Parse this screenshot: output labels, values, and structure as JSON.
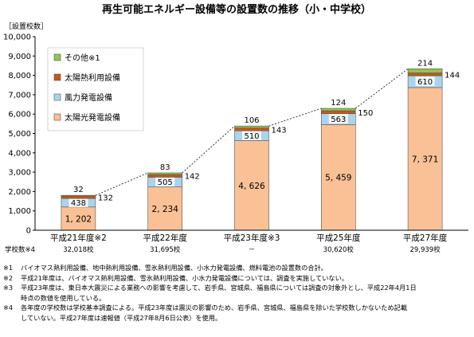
{
  "chart_data": {
    "type": "bar",
    "title": "再生可能エネルギー設備等の設置数の推移（小・中学校）",
    "ylabel": "［設置校数］",
    "ylim": [
      0,
      10000
    ],
    "yticks": [
      "0",
      "1,000",
      "2,000",
      "3,000",
      "4,000",
      "5,000",
      "6,000",
      "7,000",
      "8,000",
      "9,000",
      "10,000"
    ],
    "stacked": true,
    "categories": [
      "平成21年度※2",
      "平成22年度",
      "平成23年度※3",
      "平成25年度",
      "平成27年度"
    ],
    "series": [
      {
        "name": "太陽光発電設備",
        "values": [
          1202,
          2234,
          4626,
          5459,
          7371
        ],
        "labels": [
          "1, 202",
          "2, 234",
          "4, 626",
          "5, 459",
          "7, 371"
        ],
        "color": "#f9c195"
      },
      {
        "name": "風力発電設備",
        "values": [
          438,
          505,
          510,
          563,
          610
        ],
        "labels": [
          "438",
          "505",
          "510",
          "563",
          "610"
        ],
        "color": "#a9d4f0"
      },
      {
        "name": "太陽熱利用設備",
        "values": [
          132,
          142,
          143,
          150,
          144
        ],
        "labels": [
          "132",
          "142",
          "143",
          "150",
          "144"
        ],
        "color": "#c55a11"
      },
      {
        "name": "その他※1",
        "values": [
          32,
          83,
          106,
          124,
          214
        ],
        "labels": [
          "32",
          "83",
          "106",
          "124",
          "214"
        ],
        "color": "#92c353"
      }
    ],
    "legend_order": [
      "その他※1",
      "太陽熱利用設備",
      "風力発電設備",
      "太陽光発電設備"
    ],
    "legend_position": "top-left",
    "trend_line": "dotted line connecting bar tops",
    "school_count_label": "学校数※4",
    "school_counts": [
      "32,018校",
      "31,695校",
      "－",
      "30,620校",
      "29,939校"
    ]
  },
  "notes": [
    {
      "mark": "※1",
      "text": "バイオマス熱利用設備、地中熱利用設備、雪氷熱利用設備、小水力発電設備、燃料電池の設置数の合計。"
    },
    {
      "mark": "※2",
      "text": "平成21年度は、バイオマス熱利用設備、雪氷熱利用設備、小水力発電設備については、調査を実施していない。"
    },
    {
      "mark": "※3",
      "text": "平成23年度は、東日本大震災による業務への影響を考慮して、岩手県、宮城県、福島県については調査の対象外とし、平成22年4月1日\n時点の数値を使用している。"
    },
    {
      "mark": "※4",
      "text": "各年度の学校数は学校基本調査による。平成23年度は震災の影響のため、岩手県、宮城県、福島県を除いた学校数しかないため記載\nしていない。平成27年度は速報値（平成27年8月6日公表）を使用。"
    }
  ]
}
